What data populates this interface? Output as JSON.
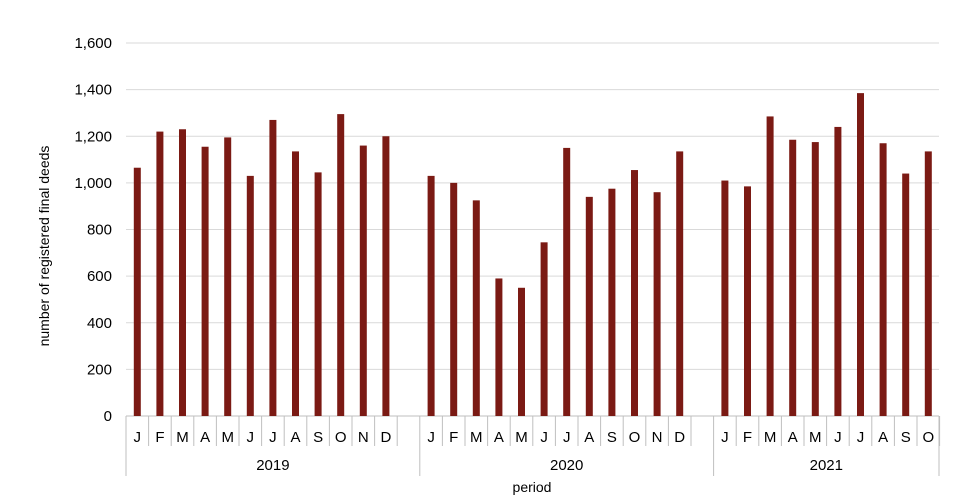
{
  "chart_data": {
    "type": "bar",
    "xlabel": "period",
    "ylabel": "number of registered final deeds",
    "ylim": [
      0,
      1600
    ],
    "ytick_step": 200,
    "yticks": [
      "0",
      "200",
      "400",
      "600",
      "800",
      "1,000",
      "1,200",
      "1,400",
      "1,600"
    ],
    "grid": "horizontal",
    "bar_color": "#7b1a14",
    "groups": [
      {
        "label": "2019",
        "months": [
          "J",
          "F",
          "M",
          "A",
          "M",
          "J",
          "J",
          "A",
          "S",
          "O",
          "N",
          "D"
        ],
        "values": [
          1065,
          1220,
          1230,
          1155,
          1195,
          1030,
          1270,
          1135,
          1045,
          1295,
          1160,
          1200
        ]
      },
      {
        "label": "2020",
        "months": [
          "J",
          "F",
          "M",
          "A",
          "M",
          "J",
          "J",
          "A",
          "S",
          "O",
          "N",
          "D"
        ],
        "values": [
          1030,
          1000,
          925,
          590,
          550,
          745,
          1150,
          940,
          975,
          1055,
          960,
          1135
        ]
      },
      {
        "label": "2021",
        "months": [
          "J",
          "F",
          "M",
          "A",
          "M",
          "J",
          "J",
          "A",
          "S",
          "O"
        ],
        "values": [
          1010,
          985,
          1285,
          1185,
          1175,
          1240,
          1385,
          1170,
          1040,
          1135
        ]
      }
    ]
  }
}
